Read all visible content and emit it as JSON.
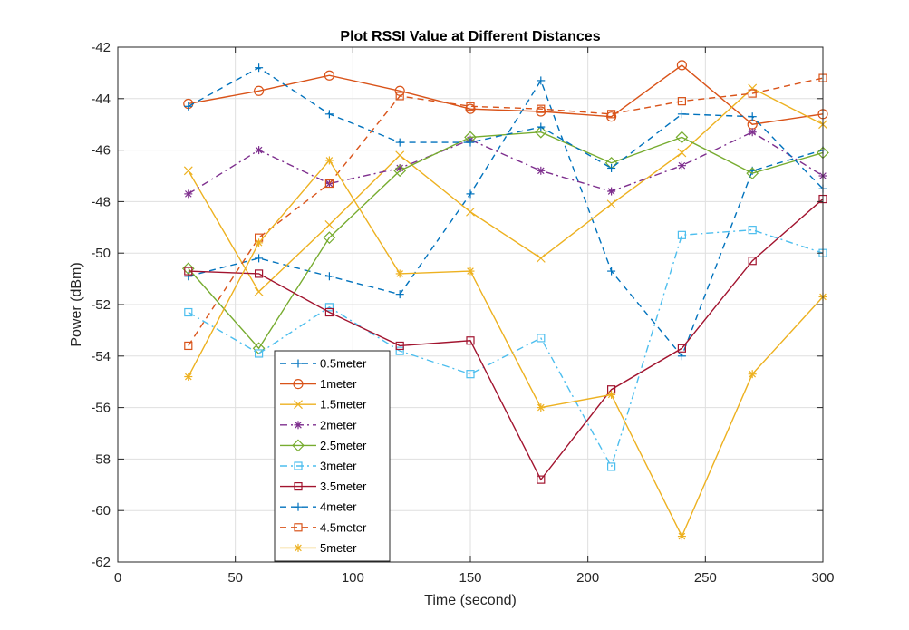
{
  "chart_data": {
    "type": "line",
    "title": "Plot RSSI Value at Different Distances",
    "xlabel": "Time (second)",
    "ylabel": "Power (dBm)",
    "xlim": [
      0,
      300
    ],
    "ylim": [
      -62,
      -42
    ],
    "xticks": [
      0,
      50,
      100,
      150,
      200,
      250,
      300
    ],
    "yticks": [
      -62,
      -60,
      -58,
      -56,
      -54,
      -52,
      -50,
      -48,
      -46,
      -44,
      -42
    ],
    "grid": true,
    "legend_placement": "lower-left",
    "x": [
      30,
      60,
      90,
      120,
      150,
      180,
      210,
      240,
      270,
      300
    ],
    "series": [
      {
        "name": "0.5meter",
        "color": "#0072BD",
        "dash": "dashed",
        "marker": "plus",
        "values": [
          -50.9,
          -50.2,
          -50.9,
          -51.6,
          -47.7,
          -43.3,
          -50.7,
          -54.0,
          -46.8,
          -46.0
        ]
      },
      {
        "name": "1meter",
        "color": "#D95319",
        "dash": "solid",
        "marker": "circle",
        "values": [
          -44.2,
          -43.7,
          -43.1,
          -43.7,
          -44.4,
          -44.5,
          -44.7,
          -42.7,
          -45.0,
          -44.6
        ]
      },
      {
        "name": "1.5meter",
        "color": "#EDB120",
        "dash": "solid",
        "marker": "x",
        "values": [
          -46.8,
          -51.5,
          -48.9,
          -46.2,
          -48.4,
          -50.2,
          -48.1,
          -46.1,
          -43.6,
          -45.0
        ]
      },
      {
        "name": "2meter",
        "color": "#7E2F8E",
        "dash": "dashdot",
        "marker": "asterisk",
        "values": [
          -47.7,
          -46.0,
          -47.3,
          -46.7,
          -45.6,
          -46.8,
          -47.6,
          -46.6,
          -45.3,
          -47.0
        ]
      },
      {
        "name": "2.5meter",
        "color": "#77AC30",
        "dash": "solid",
        "marker": "diamond",
        "values": [
          -50.6,
          -53.7,
          -49.4,
          -46.8,
          -45.5,
          -45.3,
          -46.5,
          -45.5,
          -46.9,
          -46.1
        ]
      },
      {
        "name": "3meter",
        "color": "#4DBEEE",
        "dash": "dashdot",
        "marker": "square",
        "values": [
          -52.3,
          -53.9,
          -52.1,
          -53.8,
          -54.7,
          -53.3,
          -58.3,
          -49.3,
          -49.1,
          -50.0
        ]
      },
      {
        "name": "3.5meter",
        "color": "#A2142F",
        "dash": "solid",
        "marker": "square",
        "values": [
          -50.7,
          -50.8,
          -52.3,
          -53.6,
          -53.4,
          -58.8,
          -55.3,
          -53.7,
          -50.3,
          -47.9
        ]
      },
      {
        "name": "4meter",
        "color": "#0072BD",
        "dash": "dashed",
        "marker": "plus",
        "values": [
          -44.3,
          -42.8,
          -44.6,
          -45.7,
          -45.7,
          -45.1,
          -46.7,
          -44.6,
          -44.7,
          -47.5
        ]
      },
      {
        "name": "4.5meter",
        "color": "#D95319",
        "dash": "dashed",
        "marker": "square",
        "values": [
          -53.6,
          -49.4,
          -47.3,
          -43.9,
          -44.3,
          -44.4,
          -44.6,
          -44.1,
          -43.8,
          -43.2
        ]
      },
      {
        "name": "5meter",
        "color": "#EDB120",
        "dash": "solid",
        "marker": "asterisk",
        "values": [
          -54.8,
          -49.6,
          -46.4,
          -50.8,
          -50.7,
          -56.0,
          -55.5,
          -61.0,
          -54.7,
          -51.7
        ]
      }
    ]
  }
}
